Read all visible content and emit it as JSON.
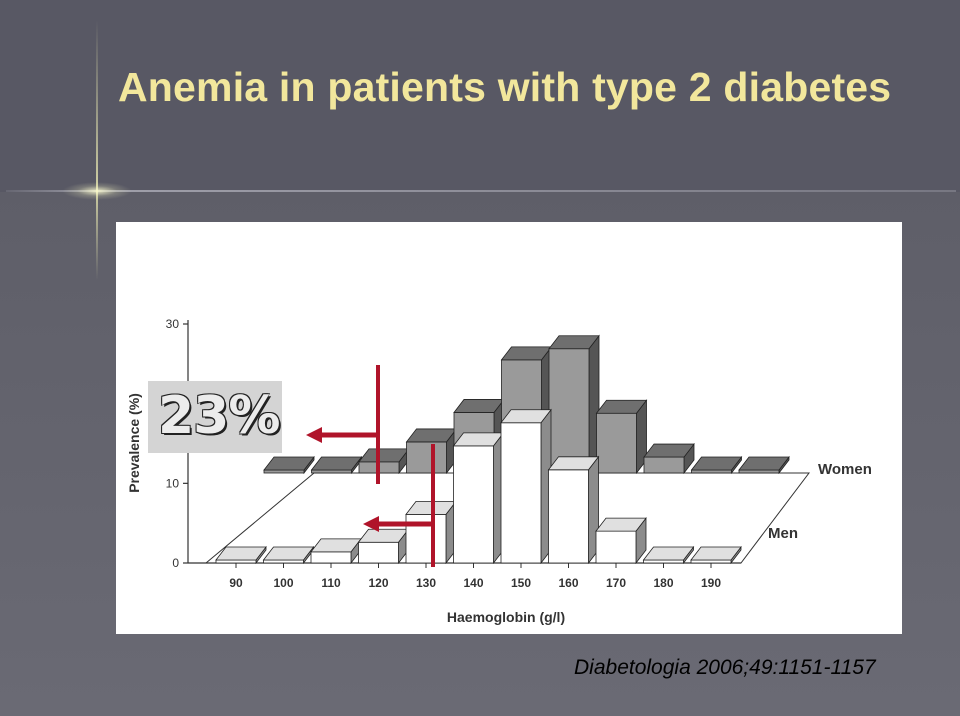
{
  "page_title": "Anemia in patients with type 2 diabetes",
  "callout": "23%",
  "citation": "Diabetologia 2006;49:1151-1157",
  "colors": {
    "title": "#f2e79c",
    "women": "#9a9a9a",
    "men": "#ffffff",
    "arrow": "#b0142a"
  },
  "chart_data": {
    "type": "bar",
    "xlabel": "Haemoglobin (g/l)",
    "ylabel": "Prevalence (%)",
    "ylim": [
      0,
      30
    ],
    "yticks": [
      "0",
      "10",
      "30"
    ],
    "categories": [
      "90",
      "100",
      "110",
      "120",
      "130",
      "140",
      "150",
      "160",
      "170",
      "180",
      "190"
    ],
    "series": [
      {
        "name": "Women",
        "values": [
          0.3,
          0.3,
          1.4,
          3.9,
          7.6,
          14.2,
          15.6,
          7.5,
          2.0,
          0.2,
          0.1
        ]
      },
      {
        "name": "Men",
        "values": [
          0.2,
          0.3,
          1.4,
          2.6,
          6.1,
          14.7,
          17.6,
          11.7,
          4.0,
          0.2,
          0.1
        ]
      }
    ]
  }
}
